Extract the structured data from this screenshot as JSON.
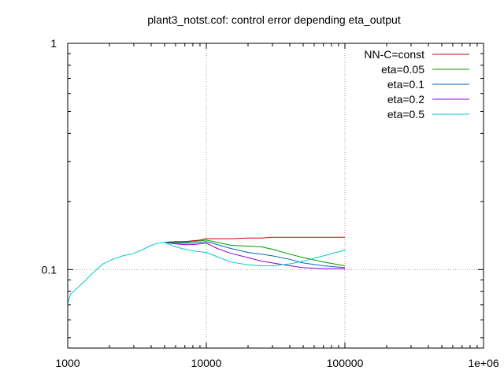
{
  "chart_data": {
    "type": "line",
    "title": "plant3_notst.cof: control error depending eta_output",
    "xlabel": "",
    "ylabel": "",
    "x_scale": "log",
    "y_scale": "log",
    "xlim": [
      1000,
      1000000
    ],
    "ylim": [
      0.045,
      1
    ],
    "grid": true,
    "legend_position": "top-right",
    "x_ticks": [
      {
        "value": 1000,
        "label": "1000"
      },
      {
        "value": 10000,
        "label": "10000"
      },
      {
        "value": 100000,
        "label": "100000"
      },
      {
        "value": 1000000,
        "label": "1e+06"
      }
    ],
    "y_ticks": [
      {
        "value": 0.1,
        "label": "0.1"
      },
      {
        "value": 1,
        "label": "1"
      }
    ],
    "series": [
      {
        "name": "NN-C=const",
        "color": "#cc0000",
        "x": [
          5000,
          6000,
          7000,
          8000,
          9000,
          10000,
          12000,
          15000,
          20000,
          25000,
          30000,
          40000,
          50000,
          70000,
          100000
        ],
        "y": [
          0.132,
          0.133,
          0.133,
          0.134,
          0.135,
          0.137,
          0.137,
          0.137,
          0.138,
          0.138,
          0.139,
          0.139,
          0.139,
          0.139,
          0.139
        ]
      },
      {
        "name": "eta=0.05",
        "color": "#009900",
        "x": [
          5000,
          6000,
          7000,
          8000,
          9000,
          10000,
          12000,
          15000,
          20000,
          25000,
          30000,
          40000,
          50000,
          70000,
          100000
        ],
        "y": [
          0.132,
          0.132,
          0.132,
          0.133,
          0.134,
          0.135,
          0.132,
          0.128,
          0.127,
          0.126,
          0.123,
          0.117,
          0.113,
          0.108,
          0.104
        ]
      },
      {
        "name": "eta=0.1",
        "color": "#0066bb",
        "x": [
          5000,
          6000,
          7000,
          8000,
          9000,
          10000,
          12000,
          15000,
          20000,
          25000,
          30000,
          40000,
          50000,
          70000,
          100000
        ],
        "y": [
          0.132,
          0.131,
          0.131,
          0.131,
          0.132,
          0.133,
          0.129,
          0.124,
          0.119,
          0.117,
          0.115,
          0.111,
          0.107,
          0.104,
          0.102
        ]
      },
      {
        "name": "eta=0.2",
        "color": "#9900cc",
        "x": [
          5000,
          6000,
          7000,
          8000,
          9000,
          10000,
          12000,
          15000,
          20000,
          25000,
          30000,
          40000,
          50000,
          70000,
          100000
        ],
        "y": [
          0.132,
          0.13,
          0.129,
          0.129,
          0.13,
          0.131,
          0.124,
          0.118,
          0.113,
          0.109,
          0.107,
          0.104,
          0.102,
          0.101,
          0.101
        ]
      },
      {
        "name": "eta=0.5",
        "color": "#00cccc",
        "x": [
          1000,
          1050,
          1150,
          1300,
          1500,
          1800,
          2100,
          2500,
          3000,
          3500,
          4000,
          4500,
          5000,
          6000,
          7000,
          8000,
          10000,
          12000,
          15000,
          20000,
          25000,
          30000,
          40000,
          50000,
          70000,
          100000
        ],
        "y": [
          0.071,
          0.078,
          0.082,
          0.088,
          0.096,
          0.106,
          0.111,
          0.115,
          0.118,
          0.123,
          0.128,
          0.131,
          0.132,
          0.126,
          0.123,
          0.121,
          0.119,
          0.114,
          0.108,
          0.105,
          0.104,
          0.104,
          0.106,
          0.109,
          0.115,
          0.122
        ]
      }
    ]
  }
}
